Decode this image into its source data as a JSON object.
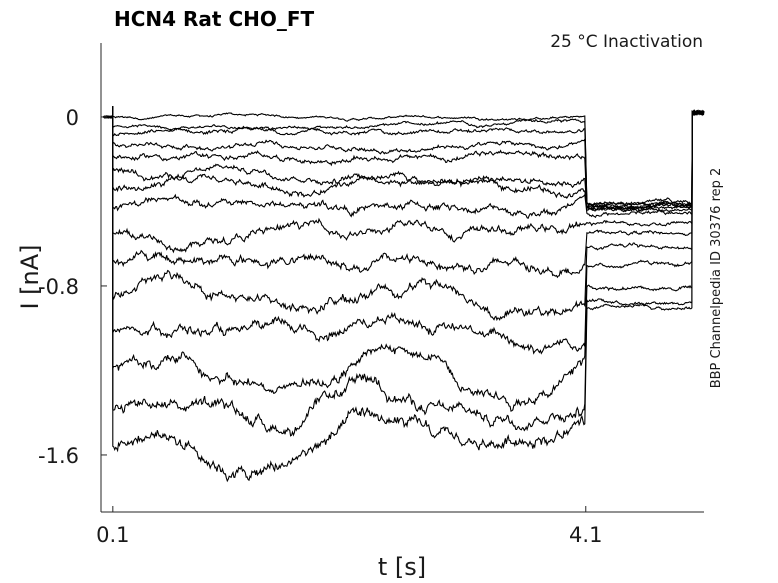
{
  "chart_data": {
    "type": "line",
    "title": "HCN4  Rat  CHO_FT",
    "subtitle": "25 °C  Inactivation",
    "side_label": "BBP Channelpedia ID 30376 rep 2",
    "xlabel": "t [s]",
    "ylabel": "I [nA]",
    "xlim": [
      0.0,
      5.1
    ],
    "ylim": [
      -1.87,
      0.35
    ],
    "x_ticks": [
      0.1,
      4.1
    ],
    "x_tick_labels": [
      "0.1",
      "4.1"
    ],
    "y_ticks": [
      0,
      -0.8,
      -1.6
    ],
    "y_tick_labels": [
      "0",
      "-0.8",
      "-1.6"
    ],
    "grid": false,
    "legend": "none",
    "line_color": "#000000",
    "protocol": {
      "pulse_start": 0.1,
      "pulse_end": 4.1,
      "trace_end": 5.1
    },
    "series": [
      {
        "pulse_level": 0.0,
        "tail_level": -0.41
      },
      {
        "pulse_level": -0.04,
        "tail_level": -0.41
      },
      {
        "pulse_level": -0.08,
        "tail_level": -0.42
      },
      {
        "pulse_level": -0.13,
        "tail_level": -0.42
      },
      {
        "pulse_level": -0.19,
        "tail_level": -0.43
      },
      {
        "pulse_level": -0.26,
        "tail_level": -0.43
      },
      {
        "pulse_level": -0.34,
        "tail_level": -0.44
      },
      {
        "pulse_level": -0.43,
        "tail_level": -0.46
      },
      {
        "pulse_level": -0.54,
        "tail_level": -0.5
      },
      {
        "pulse_level": -0.68,
        "tail_level": -0.55
      },
      {
        "pulse_level": -0.84,
        "tail_level": -0.62
      },
      {
        "pulse_level": -1.02,
        "tail_level": -0.7
      },
      {
        "pulse_level": -1.2,
        "tail_level": -0.8
      },
      {
        "pulse_level": -1.38,
        "tail_level": -0.87
      },
      {
        "pulse_level": -1.55,
        "tail_level": -0.91
      }
    ]
  }
}
